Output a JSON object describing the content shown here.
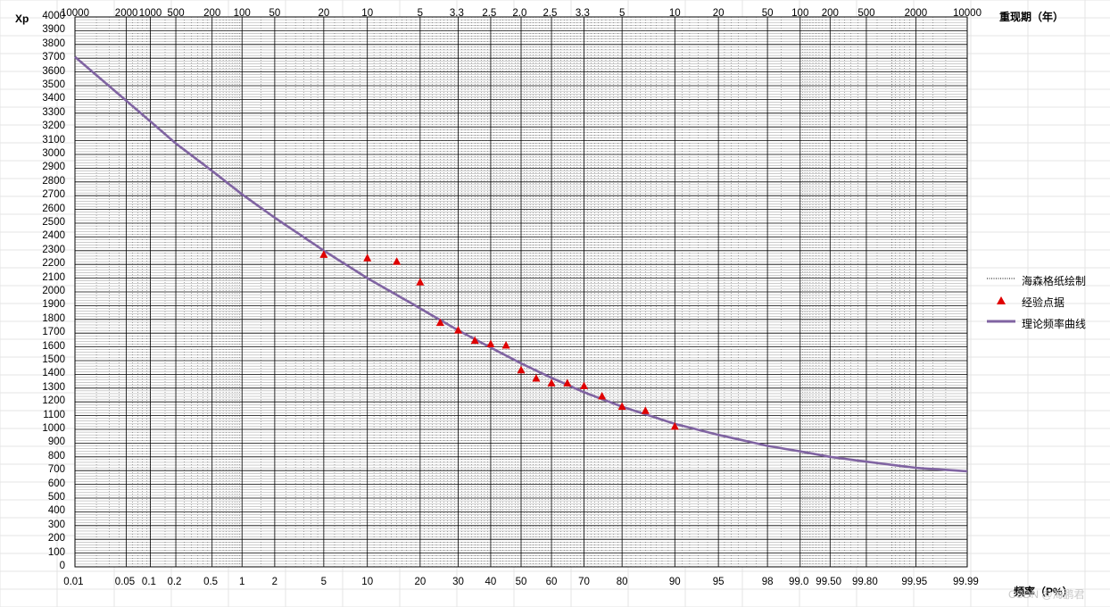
{
  "chart_data": {
    "type": "line",
    "title": "",
    "ylabel": "Xp",
    "xlabel": "频率（P%）",
    "x2label": "重现期（年）",
    "ylim": [
      0,
      4000
    ],
    "ytick_step": 100,
    "x_scale": "probability",
    "x_ticks": [
      "0.01",
      "0.05",
      "0.1",
      "0.2",
      "0.5",
      "1",
      "2",
      "5",
      "10",
      "20",
      "30",
      "40",
      "50",
      "60",
      "70",
      "80",
      "90",
      "95",
      "98",
      "99.0",
      "99.50",
      "99.80",
      "99.95",
      "99.99"
    ],
    "top_ticks": [
      "10000",
      "2000",
      "1000",
      "500",
      "200",
      "100",
      "50",
      "20",
      "10",
      "5",
      "3.3",
      "2.5",
      "2.0",
      "2.5",
      "3.3",
      "5",
      "10",
      "20",
      "50",
      "100",
      "200",
      "500",
      "2000",
      "10000"
    ],
    "grid": true,
    "legend_position": "right",
    "series": [
      {
        "name": "海森格纸绘制",
        "kind": "grid-line",
        "color": "#000000"
      },
      {
        "name": "经验点据",
        "kind": "scatter",
        "marker": "triangle",
        "color": "#e00000",
        "points": [
          [
            5.0,
            2270
          ],
          [
            10.0,
            2245
          ],
          [
            15.0,
            2220
          ],
          [
            20.0,
            2070
          ],
          [
            25.0,
            1775
          ],
          [
            30.0,
            1720
          ],
          [
            35.0,
            1645
          ],
          [
            40.0,
            1620
          ],
          [
            45.0,
            1610
          ],
          [
            50.0,
            1430
          ],
          [
            55.0,
            1370
          ],
          [
            60.0,
            1335
          ],
          [
            65.0,
            1335
          ],
          [
            70.0,
            1315
          ],
          [
            75.0,
            1240
          ],
          [
            80.0,
            1165
          ],
          [
            85.0,
            1135
          ],
          [
            90.0,
            1020
          ]
        ]
      },
      {
        "name": "理论频率曲线",
        "kind": "line",
        "color": "#8064a2",
        "points": [
          [
            0.01,
            3710
          ],
          [
            0.05,
            3390
          ],
          [
            0.1,
            3240
          ],
          [
            0.2,
            3080
          ],
          [
            0.5,
            2880
          ],
          [
            1,
            2710
          ],
          [
            2,
            2540
          ],
          [
            5,
            2300
          ],
          [
            10,
            2100
          ],
          [
            20,
            1880
          ],
          [
            30,
            1720
          ],
          [
            40,
            1595
          ],
          [
            50,
            1480
          ],
          [
            60,
            1375
          ],
          [
            70,
            1270
          ],
          [
            80,
            1165
          ],
          [
            90,
            1040
          ],
          [
            95,
            960
          ],
          [
            98,
            880
          ],
          [
            99.0,
            840
          ],
          [
            99.5,
            800
          ],
          [
            99.8,
            765
          ],
          [
            99.95,
            720
          ],
          [
            99.99,
            695
          ]
        ]
      }
    ]
  },
  "watermark": "CSDN @海鹏君"
}
